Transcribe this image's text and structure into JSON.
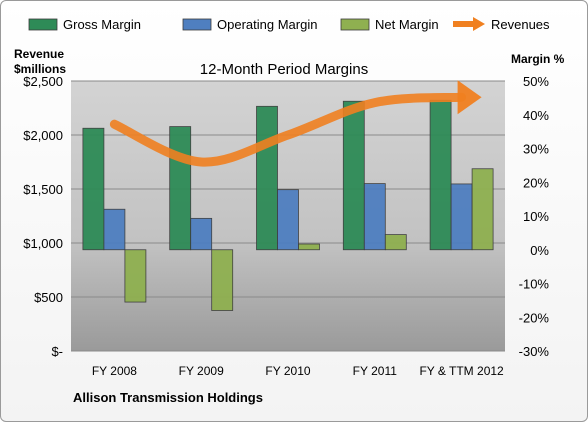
{
  "chart_data": {
    "type": "bar",
    "title": "12-Month Period Margins",
    "company": "Allison Transmission Holdings",
    "y_left_label_line1": "Revenue",
    "y_left_label_line2": "$millions",
    "y_right_label": "Margin %",
    "categories": [
      "FY 2008",
      "FY 2009",
      "FY 2010",
      "FY 2011",
      "FY & TTM 2012"
    ],
    "y_left_ticks": [
      "$-",
      "$500",
      "$1,000",
      "$1,500",
      "$2,000",
      "$2,500"
    ],
    "y_left_range": [
      0,
      2500
    ],
    "y_right_ticks": [
      "-30%",
      "-20%",
      "-10%",
      "0%",
      "10%",
      "20%",
      "30%",
      "40%",
      "50%"
    ],
    "y_right_range": [
      -30,
      50
    ],
    "grid": true,
    "legend_position": "top",
    "series": [
      {
        "name": "Gross Margin",
        "color": "#2e8b57",
        "values": [
          36,
          36.5,
          42.5,
          44,
          44.3
        ]
      },
      {
        "name": "Operating Margin",
        "color": "#4f7fc0",
        "values": [
          12,
          9.3,
          17.8,
          19.6,
          19.5
        ]
      },
      {
        "name": "Net Margin",
        "color": "#8fb050",
        "values": [
          -15.5,
          -18,
          1.7,
          4.5,
          24
        ]
      }
    ],
    "revenues": {
      "name": "Revenues",
      "color": "#f08020",
      "values": [
        2100,
        1750,
        2000,
        2300,
        2350
      ]
    }
  }
}
